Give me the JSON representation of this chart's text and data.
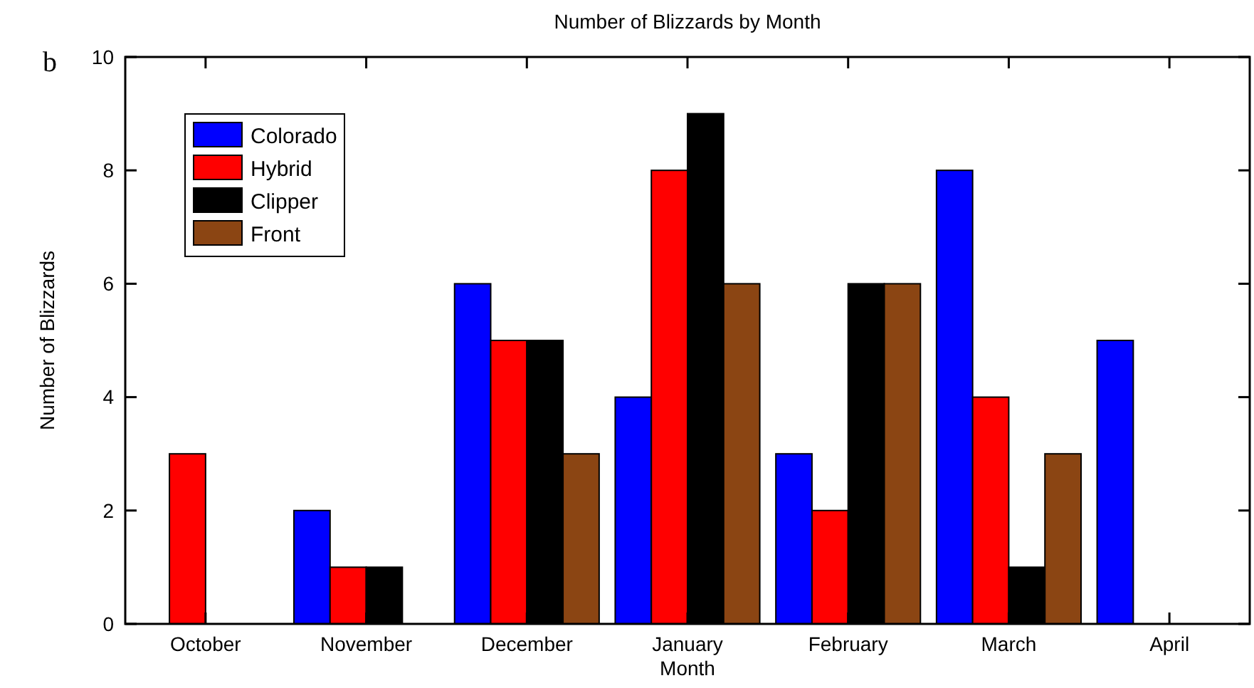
{
  "chart_data": {
    "type": "bar",
    "title": "Number of Blizzards by Month",
    "xlabel": "Month",
    "ylabel": "Number of Blizzards",
    "annotations": [
      "b"
    ],
    "categories": [
      "October",
      "November",
      "December",
      "January",
      "February",
      "March",
      "April"
    ],
    "series": [
      {
        "name": "Colorado",
        "color": "#0000ff",
        "values": [
          0,
          2,
          6,
          4,
          3,
          8,
          5
        ]
      },
      {
        "name": "Hybrid",
        "color": "#ff0000",
        "values": [
          3,
          1,
          5,
          8,
          2,
          4,
          0
        ]
      },
      {
        "name": "Clipper",
        "color": "#000000",
        "values": [
          0,
          1,
          5,
          9,
          6,
          1,
          0
        ]
      },
      {
        "name": "Front",
        "color": "#8b4513",
        "values": [
          0,
          0,
          3,
          6,
          6,
          3,
          0
        ]
      }
    ],
    "ylim": [
      0,
      10
    ],
    "yticks": [
      0,
      2,
      4,
      6,
      8,
      10
    ],
    "grid": false,
    "legend": "top left"
  }
}
